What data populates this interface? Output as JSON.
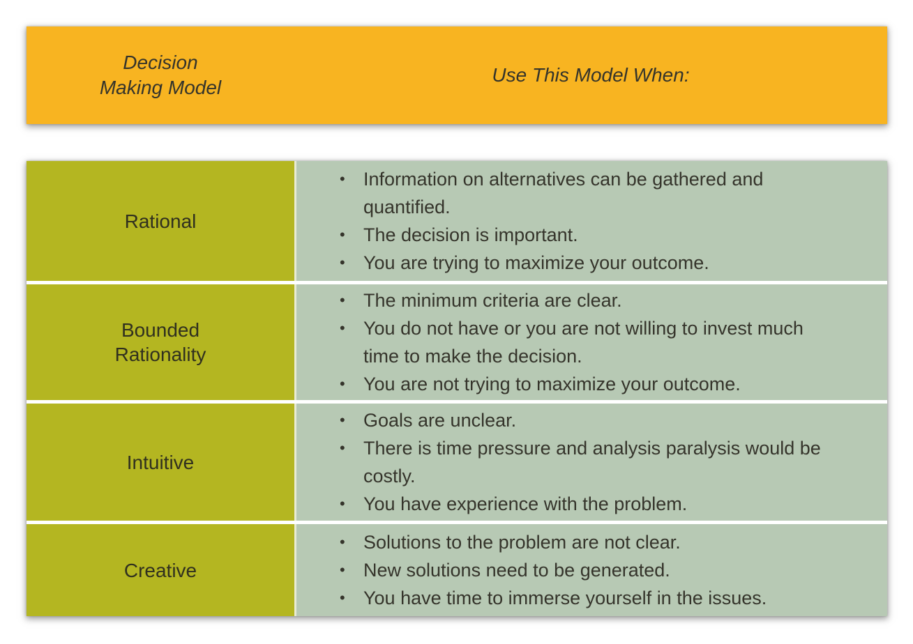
{
  "colors": {
    "header_bg": "#F8B421",
    "model_column_bg": "#B4B621",
    "criteria_column_bg": "#B7C9B4",
    "row_separator": "#FFFFFF",
    "column_divider": "#E9EBD4",
    "text": "#35342B"
  },
  "header": {
    "model_column_title_lines": [
      "Decision",
      "Making Model"
    ],
    "usage_column_title": "Use This Model When:"
  },
  "table": {
    "rows": [
      {
        "model_lines": [
          "Rational"
        ],
        "bullets": [
          "Information on alternatives can be gathered and quantified.",
          "The decision is important.",
          "You are trying to maximize your outcome."
        ]
      },
      {
        "model_lines": [
          "Bounded",
          "Rationality"
        ],
        "bullets": [
          "The minimum criteria are clear.",
          "You do not have or you are not willing to invest much time to make the decision.",
          "You are not trying to maximize your outcome."
        ]
      },
      {
        "model_lines": [
          "Intuitive"
        ],
        "bullets": [
          "Goals are unclear.",
          "There is time pressure and analysis paralysis would be costly.",
          "You have experience with the problem."
        ]
      },
      {
        "model_lines": [
          "Creative"
        ],
        "bullets": [
          "Solutions to the problem are not clear.",
          "New solutions need to be generated.",
          "You have time to immerse yourself in the issues."
        ]
      }
    ]
  }
}
